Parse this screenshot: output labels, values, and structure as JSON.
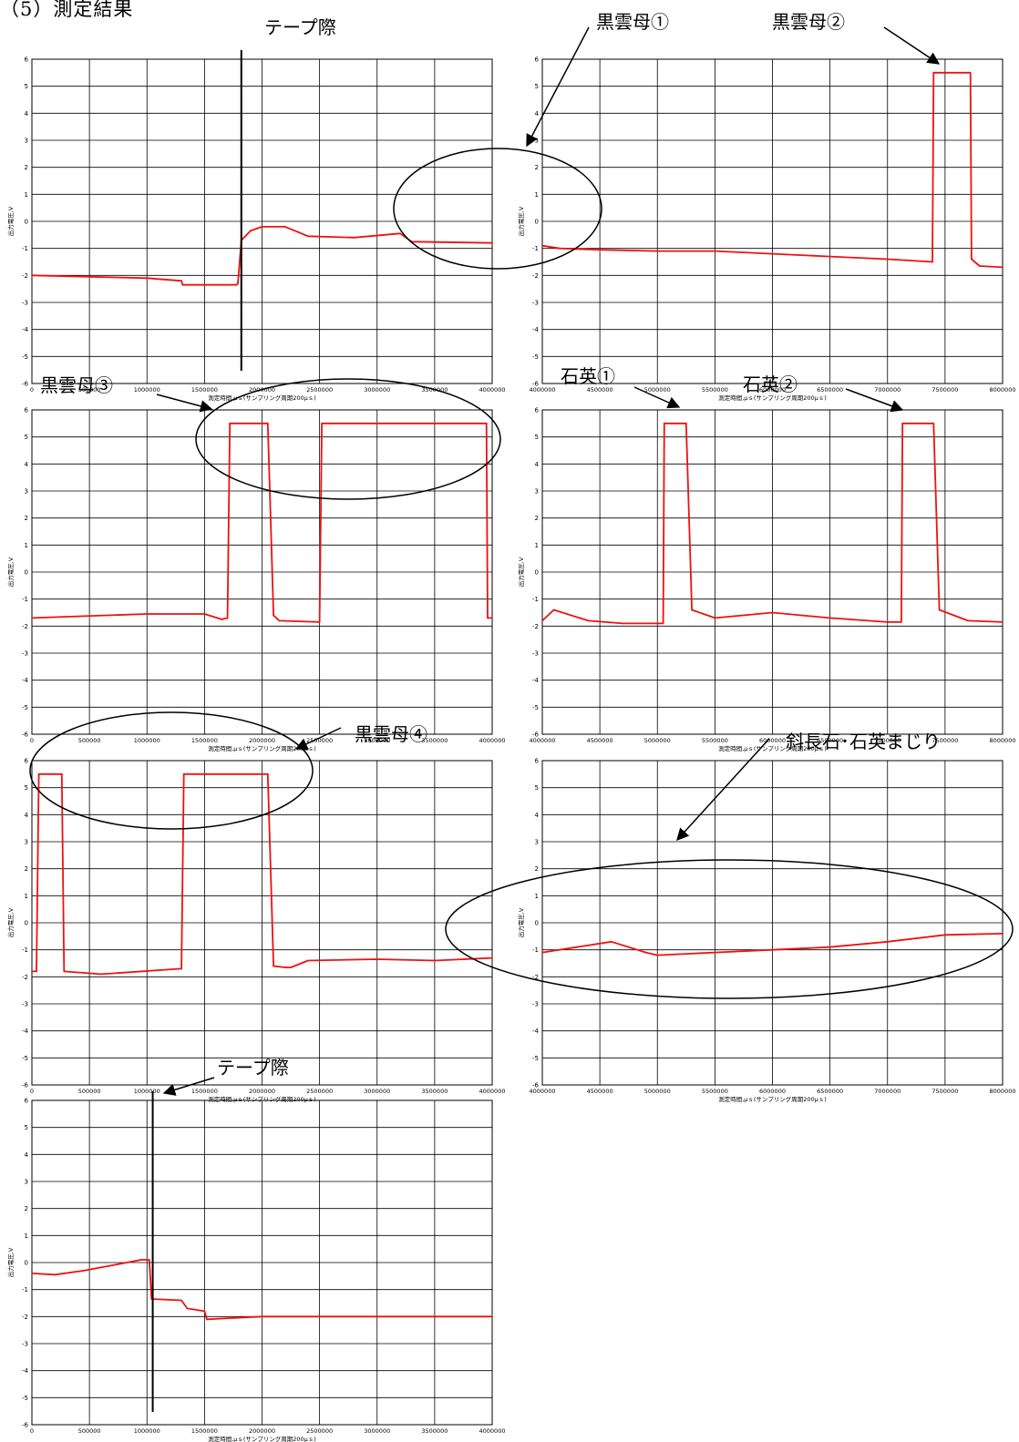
{
  "page_title": "（5）測定結果",
  "callouts": {
    "tape_edge_1": "テープ際",
    "biotite_1": "黒雲母①",
    "biotite_2": "黒雲母②",
    "biotite_3": "黒雲母③",
    "quartz_1": "石英①",
    "quartz_2": "石英②",
    "biotite_4": "黒雲母④",
    "plagioclase_quartz": "斜長石･石英まじり",
    "tape_edge_2": "テープ際"
  },
  "colors": {
    "series": "#ee1111",
    "grid": "#000000",
    "annotation": "#000000"
  },
  "chart_data": [
    {
      "id": "chart1",
      "type": "line",
      "xlabel": "測定時間,μｓ(サンプリング周期200μｓ)",
      "ylabel": "出力電圧,V",
      "xlim": [
        0,
        4000000
      ],
      "ylim": [
        -6,
        6
      ],
      "x_step": 500000,
      "y_step": 1,
      "xticks": [
        "0",
        "500000",
        "1000000",
        "1500000",
        "2000000",
        "2500000",
        "3000000",
        "3500000",
        "4000000"
      ],
      "yticks": [
        "-6",
        "-5",
        "-4",
        "-3",
        "-2",
        "-1",
        "0",
        "1",
        "2",
        "3",
        "4",
        "5",
        "6"
      ],
      "grid": true,
      "series": [
        {
          "x": [
            0,
            500000,
            1000000,
            1300000,
            1310000,
            1780000,
            1790000,
            1820000,
            1900000,
            2000000,
            2200000,
            2400000,
            2800000,
            3200000,
            3300000,
            4000000
          ],
          "y": [
            -2.0,
            -2.05,
            -2.1,
            -2.2,
            -2.35,
            -2.35,
            -2.3,
            -0.7,
            -0.35,
            -0.2,
            -0.2,
            -0.55,
            -0.6,
            -0.45,
            -0.75,
            -0.8
          ]
        }
      ],
      "vline_x": 1820000
    },
    {
      "id": "chart2",
      "type": "line",
      "xlabel": "測定時間,μｓ(サンプリング周期200μｓ)",
      "ylabel": "出力電圧,V",
      "xlim": [
        4000000,
        8000000
      ],
      "ylim": [
        -6,
        6
      ],
      "x_step": 500000,
      "y_step": 1,
      "xticks": [
        "4000000",
        "4500000",
        "5000000",
        "5500000",
        "6000000",
        "6500000",
        "7000000",
        "7500000",
        "8000000"
      ],
      "yticks": [
        "-6",
        "-5",
        "-4",
        "-3",
        "-2",
        "-1",
        "0",
        "1",
        "2",
        "3",
        "4",
        "5",
        "6"
      ],
      "grid": true,
      "series": [
        {
          "x": [
            4000000,
            4150000,
            4500000,
            5000000,
            5500000,
            6000000,
            6500000,
            7000000,
            7390000,
            7400000,
            7410000,
            7720000,
            7730000,
            7800000,
            8000000
          ],
          "y": [
            -0.9,
            -1.0,
            -1.05,
            -1.1,
            -1.1,
            -1.2,
            -1.3,
            -1.4,
            -1.5,
            5.5,
            5.5,
            5.5,
            -1.4,
            -1.65,
            -1.7
          ]
        }
      ]
    },
    {
      "id": "chart3",
      "type": "line",
      "xlabel": "測定時間,μｓ(サンプリング周期200μｓ)",
      "ylabel": "出力電圧,V",
      "xlim": [
        0,
        4000000
      ],
      "ylim": [
        -6,
        6
      ],
      "x_step": 500000,
      "y_step": 1,
      "xticks": [
        "0",
        "500000",
        "1000000",
        "1500000",
        "2000000",
        "2500000",
        "3000000",
        "3500000",
        "4000000"
      ],
      "yticks": [
        "-6",
        "-5",
        "-4",
        "-3",
        "-2",
        "-1",
        "0",
        "1",
        "2",
        "3",
        "4",
        "5",
        "6"
      ],
      "grid": true,
      "series": [
        {
          "x": [
            0,
            1000000,
            1500000,
            1650000,
            1700000,
            1720000,
            2050000,
            2100000,
            2150000,
            2500000,
            2520000,
            2540000,
            3950000,
            3960000,
            4000000
          ],
          "y": [
            -1.7,
            -1.55,
            -1.55,
            -1.75,
            -1.7,
            5.5,
            5.5,
            -1.6,
            -1.8,
            -1.85,
            5.5,
            5.5,
            5.5,
            -1.7,
            -1.7
          ]
        }
      ]
    },
    {
      "id": "chart4",
      "type": "line",
      "xlabel": "測定時間,μｓ(サンプリング周期200μｓ)",
      "ylabel": "出力電圧,V",
      "xlim": [
        4000000,
        8000000
      ],
      "ylim": [
        -6,
        6
      ],
      "x_step": 500000,
      "y_step": 1,
      "xticks": [
        "4000000",
        "4500000",
        "5000000",
        "5500000",
        "6000000",
        "6500000",
        "7000000",
        "7500000",
        "8000000"
      ],
      "yticks": [
        "-6",
        "-5",
        "-4",
        "-3",
        "-2",
        "-1",
        "0",
        "1",
        "2",
        "3",
        "4",
        "5",
        "6"
      ],
      "grid": true,
      "series": [
        {
          "x": [
            4000000,
            4100000,
            4400000,
            4700000,
            5050000,
            5060000,
            5250000,
            5300000,
            5500000,
            6000000,
            6500000,
            7000000,
            7120000,
            7130000,
            7400000,
            7450000,
            7700000,
            8000000
          ],
          "y": [
            -1.8,
            -1.4,
            -1.8,
            -1.9,
            -1.9,
            5.5,
            5.5,
            -1.4,
            -1.7,
            -1.5,
            -1.7,
            -1.85,
            -1.85,
            5.5,
            5.5,
            -1.4,
            -1.8,
            -1.85
          ]
        }
      ]
    },
    {
      "id": "chart5",
      "type": "line",
      "xlabel": "測定時間,μｓ(サンプリング周期200μｓ)",
      "ylabel": "出力電圧,V",
      "xlim": [
        0,
        4000000
      ],
      "ylim": [
        -6,
        6
      ],
      "x_step": 500000,
      "y_step": 1,
      "xticks": [
        "0",
        "500000",
        "1000000",
        "1500000",
        "2000000",
        "2500000",
        "3000000",
        "3500000",
        "4000000"
      ],
      "yticks": [
        "-6",
        "-5",
        "-4",
        "-3",
        "-2",
        "-1",
        "0",
        "1",
        "2",
        "3",
        "4",
        "5",
        "6"
      ],
      "grid": true,
      "series": [
        {
          "x": [
            0,
            40000,
            60000,
            260000,
            280000,
            600000,
            1300000,
            1320000,
            2050000,
            2100000,
            2200000,
            2250000,
            2400000,
            3000000,
            3500000,
            4000000
          ],
          "y": [
            -1.8,
            -1.8,
            5.5,
            5.5,
            -1.8,
            -1.9,
            -1.7,
            5.5,
            5.5,
            -1.6,
            -1.65,
            -1.65,
            -1.4,
            -1.35,
            -1.4,
            -1.3
          ]
        }
      ]
    },
    {
      "id": "chart6",
      "type": "line",
      "xlabel": "測定時間,μｓ(サンプリング周期200μｓ)",
      "ylabel": "出力電圧,V",
      "xlim": [
        4000000,
        8000000
      ],
      "ylim": [
        -6,
        6
      ],
      "x_step": 500000,
      "y_step": 1,
      "xticks": [
        "4000000",
        "4500000",
        "5000000",
        "5500000",
        "6000000",
        "6500000",
        "7000000",
        "7500000",
        "8000000"
      ],
      "yticks": [
        "-6",
        "-5",
        "-4",
        "-3",
        "-2",
        "-1",
        "0",
        "1",
        "2",
        "3",
        "4",
        "5",
        "6"
      ],
      "grid": true,
      "series": [
        {
          "x": [
            4000000,
            4300000,
            4600000,
            4900000,
            5000000,
            5500000,
            6000000,
            6500000,
            7000000,
            7500000,
            8000000
          ],
          "y": [
            -1.1,
            -0.9,
            -0.7,
            -1.1,
            -1.2,
            -1.1,
            -1.0,
            -0.9,
            -0.7,
            -0.45,
            -0.4
          ]
        }
      ]
    },
    {
      "id": "chart7",
      "type": "line",
      "xlabel": "測定時間,μｓ(サンプリング周期200μｓ)",
      "ylabel": "出力電圧,V",
      "xlim": [
        0,
        4000000
      ],
      "ylim": [
        -6,
        6
      ],
      "x_step": 500000,
      "y_step": 1,
      "xticks": [
        "0",
        "500000",
        "1000000",
        "1500000",
        "2000000",
        "2500000",
        "3000000",
        "3500000",
        "4000000"
      ],
      "yticks": [
        "-6",
        "-5",
        "-4",
        "-3",
        "-2",
        "-1",
        "0",
        "1",
        "2",
        "3",
        "4",
        "5",
        "6"
      ],
      "grid": true,
      "series": [
        {
          "x": [
            0,
            200000,
            450000,
            700000,
            950000,
            1020000,
            1040000,
            1300000,
            1350000,
            1500000,
            1520000,
            2000000,
            4000000
          ],
          "y": [
            -0.4,
            -0.45,
            -0.3,
            -0.1,
            0.1,
            0.1,
            -1.35,
            -1.4,
            -1.7,
            -1.8,
            -2.1,
            -2.0,
            -2.0
          ]
        }
      ],
      "vline_x": 1050000
    }
  ]
}
